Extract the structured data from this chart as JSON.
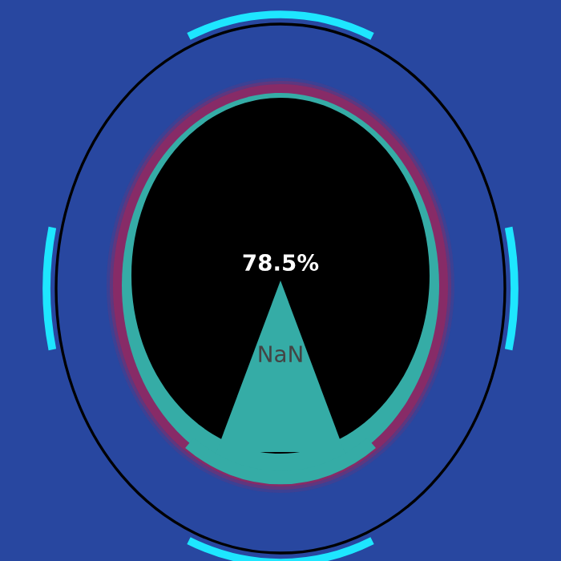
{
  "chart_data": {
    "type": "other",
    "values": [
      78.5
    ],
    "value_labels": [
      "78.5%"
    ],
    "annotations": [
      "NaN"
    ]
  }
}
